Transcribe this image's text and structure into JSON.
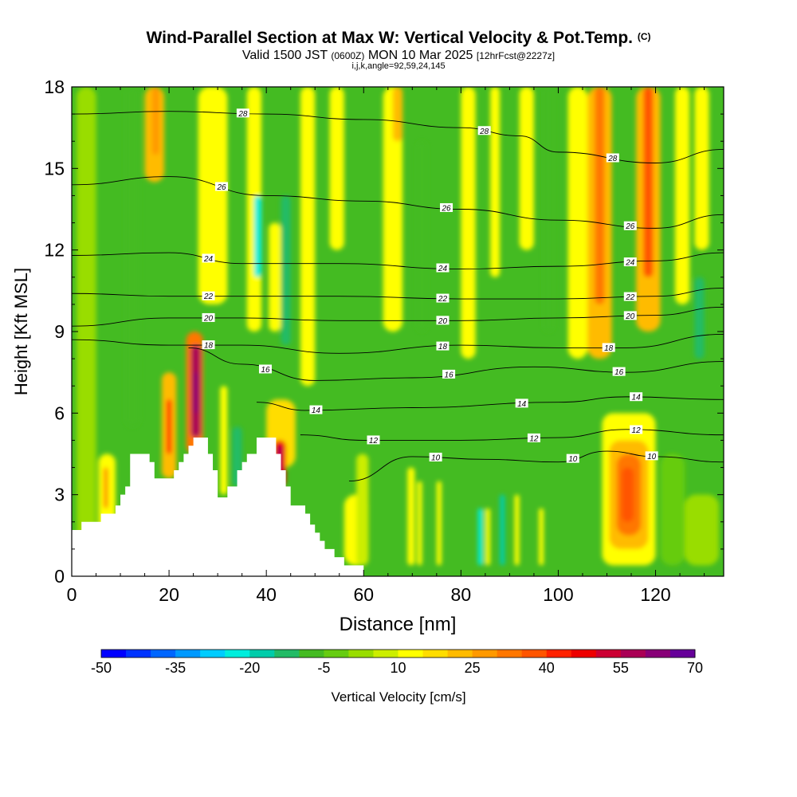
{
  "title": {
    "main": "Wind-Parallel Section at Max W: Vertical Velocity & Pot.Temp.",
    "copyright": "(C)",
    "valid_prefix": "Valid 1500 JST",
    "valid_utc": "(0600Z)",
    "valid_date": "MON 10 Mar 2025",
    "forecast": "[12hrFcst@2227z]",
    "indices": "i,j,k,angle=92,59,24,145"
  },
  "colors": {
    "background": "#ffffff",
    "terrain": "#ffffff",
    "contour": "#000000",
    "base_fill": "#44bb22"
  },
  "chart_data": {
    "type": "heatmap",
    "xlabel": "Distance [nm]",
    "ylabel": "Height [Kft MSL]",
    "xlim": [
      0,
      134
    ],
    "ylim": [
      0,
      18
    ],
    "x_ticks": [
      0,
      20,
      40,
      60,
      80,
      100,
      120
    ],
    "y_ticks": [
      0,
      3,
      6,
      9,
      12,
      15,
      18
    ],
    "terrain_profile": [
      [
        0,
        1.7
      ],
      [
        2,
        1.7
      ],
      [
        2,
        2
      ],
      [
        6,
        2
      ],
      [
        6,
        2.3
      ],
      [
        9,
        2.3
      ],
      [
        9,
        2.6
      ],
      [
        10,
        2.6
      ],
      [
        10,
        3
      ],
      [
        11,
        3
      ],
      [
        11,
        3.3
      ],
      [
        12,
        3.3
      ],
      [
        12,
        4.5
      ],
      [
        16,
        4.5
      ],
      [
        16,
        4.2
      ],
      [
        17,
        4.2
      ],
      [
        17,
        3.6
      ],
      [
        21,
        3.6
      ],
      [
        21,
        3.9
      ],
      [
        22,
        3.9
      ],
      [
        22,
        4.2
      ],
      [
        23,
        4.2
      ],
      [
        23,
        4.5
      ],
      [
        24,
        4.5
      ],
      [
        24,
        4.8
      ],
      [
        25,
        4.8
      ],
      [
        25,
        5.1
      ],
      [
        28,
        5.1
      ],
      [
        28,
        4.5
      ],
      [
        29,
        4.5
      ],
      [
        29,
        3.9
      ],
      [
        30,
        3.9
      ],
      [
        30,
        2.9
      ],
      [
        32,
        2.9
      ],
      [
        32,
        3.3
      ],
      [
        34,
        3.3
      ],
      [
        34,
        3.9
      ],
      [
        35,
        3.9
      ],
      [
        35,
        4.2
      ],
      [
        36,
        4.2
      ],
      [
        36,
        4.5
      ],
      [
        38,
        4.5
      ],
      [
        38,
        5.1
      ],
      [
        42,
        5.1
      ],
      [
        42,
        4.5
      ],
      [
        43,
        4.5
      ],
      [
        43,
        3.9
      ],
      [
        44,
        3.9
      ],
      [
        44,
        3.3
      ],
      [
        45,
        3.3
      ],
      [
        45,
        2.6
      ],
      [
        48,
        2.6
      ],
      [
        48,
        2.3
      ],
      [
        49,
        2.3
      ],
      [
        49,
        1.9
      ],
      [
        50,
        1.9
      ],
      [
        50,
        1.6
      ],
      [
        51,
        1.6
      ],
      [
        51,
        1.3
      ],
      [
        52,
        1.3
      ],
      [
        52,
        1
      ],
      [
        54,
        1
      ],
      [
        54,
        0.7
      ],
      [
        56,
        0.7
      ],
      [
        56,
        0.4
      ],
      [
        60,
        0.4
      ]
    ],
    "theta_contours": [
      {
        "label": "10",
        "points": [
          [
            57,
            3.5
          ],
          [
            70,
            4.4
          ],
          [
            85,
            4.3
          ],
          [
            100,
            4.2
          ],
          [
            110,
            4.6
          ],
          [
            120,
            4.4
          ],
          [
            134,
            4.2
          ]
        ]
      },
      {
        "label": "12",
        "points": [
          [
            47,
            5.2
          ],
          [
            60,
            5.0
          ],
          [
            80,
            5.0
          ],
          [
            100,
            5.1
          ],
          [
            114,
            5.4
          ],
          [
            134,
            5.2
          ]
        ]
      },
      {
        "label": "14",
        "points": [
          [
            38,
            6.4
          ],
          [
            48,
            6.1
          ],
          [
            70,
            6.2
          ],
          [
            100,
            6.4
          ],
          [
            114,
            6.6
          ],
          [
            134,
            6.5
          ]
        ]
      },
      {
        "label": "16",
        "points": [
          [
            24,
            8.4
          ],
          [
            35,
            7.8
          ],
          [
            50,
            7.2
          ],
          [
            70,
            7.3
          ],
          [
            95,
            7.7
          ],
          [
            114,
            7.5
          ],
          [
            134,
            7.9
          ]
        ]
      },
      {
        "label": "18",
        "points": [
          [
            0,
            8.7
          ],
          [
            20,
            8.5
          ],
          [
            35,
            8.5
          ],
          [
            55,
            8.2
          ],
          [
            80,
            8.5
          ],
          [
            100,
            8.4
          ],
          [
            114,
            8.4
          ],
          [
            134,
            8.9
          ]
        ]
      },
      {
        "label": "20",
        "points": [
          [
            0,
            9.2
          ],
          [
            20,
            9.5
          ],
          [
            35,
            9.5
          ],
          [
            55,
            9.4
          ],
          [
            80,
            9.4
          ],
          [
            100,
            9.5
          ],
          [
            120,
            9.6
          ],
          [
            134,
            9.9
          ]
        ]
      },
      {
        "label": "22",
        "points": [
          [
            0,
            10.4
          ],
          [
            20,
            10.3
          ],
          [
            35,
            10.3
          ],
          [
            55,
            10.3
          ],
          [
            80,
            10.2
          ],
          [
            100,
            10.2
          ],
          [
            120,
            10.3
          ],
          [
            134,
            10.6
          ]
        ]
      },
      {
        "label": "24",
        "points": [
          [
            0,
            11.8
          ],
          [
            20,
            11.9
          ],
          [
            35,
            11.5
          ],
          [
            55,
            11.5
          ],
          [
            80,
            11.3
          ],
          [
            100,
            11.4
          ],
          [
            120,
            11.6
          ],
          [
            134,
            11.9
          ]
        ]
      },
      {
        "label": "26",
        "points": [
          [
            0,
            14.4
          ],
          [
            20,
            14.7
          ],
          [
            40,
            14.0
          ],
          [
            60,
            13.8
          ],
          [
            80,
            13.5
          ],
          [
            100,
            13.1
          ],
          [
            120,
            12.8
          ],
          [
            134,
            13.3
          ]
        ]
      },
      {
        "label": "28",
        "points": [
          [
            0,
            17.0
          ],
          [
            20,
            17.1
          ],
          [
            40,
            17.0
          ],
          [
            60,
            16.8
          ],
          [
            80,
            16.5
          ],
          [
            92,
            16.2
          ],
          [
            100,
            15.6
          ],
          [
            120,
            15.2
          ],
          [
            134,
            15.7
          ]
        ]
      }
    ],
    "velocity_cells": [
      {
        "x": [
          1,
          5
        ],
        "y": [
          0,
          18
        ],
        "value": 2
      },
      {
        "x": [
          15,
          19
        ],
        "y": [
          14.5,
          18
        ],
        "value": 20
      },
      {
        "x": [
          16.5,
          18
        ],
        "y": [
          15.5,
          18
        ],
        "value": 26
      },
      {
        "x": [
          26,
          32
        ],
        "y": [
          10,
          18
        ],
        "value": 12
      },
      {
        "x": [
          36,
          39
        ],
        "y": [
          9,
          18
        ],
        "value": 10
      },
      {
        "x": [
          40.5,
          43
        ],
        "y": [
          9,
          13
        ],
        "value": 14
      },
      {
        "x": [
          37.5,
          39
        ],
        "y": [
          11,
          14
        ],
        "value": -25
      },
      {
        "x": [
          47,
          50
        ],
        "y": [
          7,
          18
        ],
        "value": 10
      },
      {
        "x": [
          53,
          56
        ],
        "y": [
          12,
          18
        ],
        "value": 10
      },
      {
        "x": [
          64,
          68
        ],
        "y": [
          9,
          18
        ],
        "value": 12
      },
      {
        "x": [
          66,
          68
        ],
        "y": [
          16,
          18
        ],
        "value": 22
      },
      {
        "x": [
          80,
          83
        ],
        "y": [
          8,
          18
        ],
        "value": 10
      },
      {
        "x": [
          86,
          88
        ],
        "y": [
          11,
          18
        ],
        "value": 12
      },
      {
        "x": [
          92,
          95
        ],
        "y": [
          12,
          18
        ],
        "value": 10
      },
      {
        "x": [
          102,
          106
        ],
        "y": [
          8,
          18
        ],
        "value": 14
      },
      {
        "x": [
          106,
          111
        ],
        "y": [
          8,
          18
        ],
        "value": 22
      },
      {
        "x": [
          107.5,
          109.5
        ],
        "y": [
          10,
          18
        ],
        "value": 32
      },
      {
        "x": [
          116,
          121
        ],
        "y": [
          9,
          18
        ],
        "value": 22
      },
      {
        "x": [
          117.5,
          119.5
        ],
        "y": [
          11,
          18
        ],
        "value": 36
      },
      {
        "x": [
          124,
          127
        ],
        "y": [
          10,
          18
        ],
        "value": 10
      },
      {
        "x": [
          128,
          131
        ],
        "y": [
          12,
          18
        ],
        "value": 10
      },
      {
        "x": [
          11,
          14
        ],
        "y": [
          5.5,
          18
        ],
        "value": -10
      },
      {
        "x": [
          43,
          45
        ],
        "y": [
          8.5,
          14
        ],
        "value": -15
      },
      {
        "x": [
          71,
          73
        ],
        "y": [
          9,
          16
        ],
        "value": -10
      },
      {
        "x": [
          97,
          99
        ],
        "y": [
          9,
          18
        ],
        "value": -10
      },
      {
        "x": [
          128,
          130
        ],
        "y": [
          8,
          11
        ],
        "value": -12
      },
      {
        "x": [
          5.5,
          9
        ],
        "y": [
          1.7,
          4.5
        ],
        "value": 12
      },
      {
        "x": [
          6.5,
          7.5
        ],
        "y": [
          2.5,
          4
        ],
        "value": 28
      },
      {
        "x": [
          18.5,
          21.5
        ],
        "y": [
          3.6,
          7.5
        ],
        "value": 20
      },
      {
        "x": [
          19.5,
          20.5
        ],
        "y": [
          4.5,
          6.5
        ],
        "value": 40
      },
      {
        "x": [
          23.5,
          27
        ],
        "y": [
          4.5,
          9
        ],
        "value": 30
      },
      {
        "x": [
          24.5,
          26.5
        ],
        "y": [
          5.1,
          8.5
        ],
        "value": 55
      },
      {
        "x": [
          25.2,
          25.9
        ],
        "y": [
          6,
          7.5
        ],
        "value": 62
      },
      {
        "x": [
          30.5,
          32
        ],
        "y": [
          3,
          7
        ],
        "value": 14
      },
      {
        "x": [
          33,
          35
        ],
        "y": [
          3.3,
          5.5
        ],
        "value": -15
      },
      {
        "x": [
          40,
          46
        ],
        "y": [
          4,
          6.5
        ],
        "value": 18
      },
      {
        "x": [
          41.5,
          44
        ],
        "y": [
          3.3,
          5
        ],
        "value": 45
      },
      {
        "x": [
          42.2,
          43.2
        ],
        "y": [
          3.5,
          4.8
        ],
        "value": 58
      },
      {
        "x": [
          56,
          61
        ],
        "y": [
          0.4,
          3
        ],
        "value": 10
      },
      {
        "x": [
          58.5,
          61
        ],
        "y": [
          0.4,
          4.5
        ],
        "value": 8
      },
      {
        "x": [
          69,
          70.5
        ],
        "y": [
          0.4,
          4
        ],
        "value": 14
      },
      {
        "x": [
          71,
          72
        ],
        "y": [
          0.4,
          3.5
        ],
        "value": 10
      },
      {
        "x": [
          75,
          76
        ],
        "y": [
          0.4,
          3.5
        ],
        "value": 12
      },
      {
        "x": [
          83.5,
          84.5
        ],
        "y": [
          0.4,
          2.5
        ],
        "value": -25
      },
      {
        "x": [
          85,
          86
        ],
        "y": [
          0.4,
          2.5
        ],
        "value": 12
      },
      {
        "x": [
          88,
          89
        ],
        "y": [
          0.4,
          3
        ],
        "value": -20
      },
      {
        "x": [
          91,
          92
        ],
        "y": [
          0.4,
          3
        ],
        "value": 14
      },
      {
        "x": [
          96,
          97
        ],
        "y": [
          0.4,
          2.5
        ],
        "value": 10
      },
      {
        "x": [
          109,
          120
        ],
        "y": [
          0.4,
          6
        ],
        "value": 14
      },
      {
        "x": [
          110.5,
          118.5
        ],
        "y": [
          1,
          5
        ],
        "value": 22
      },
      {
        "x": [
          112,
          117
        ],
        "y": [
          1.5,
          4.5
        ],
        "value": 30
      },
      {
        "x": [
          113,
          115.5
        ],
        "y": [
          2,
          4
        ],
        "value": 36
      },
      {
        "x": [
          121,
          126
        ],
        "y": [
          0.4,
          4.5
        ],
        "value": -4
      },
      {
        "x": [
          126,
          133
        ],
        "y": [
          0.4,
          3
        ],
        "value": 2
      }
    ],
    "colorbar": {
      "label": "Vertical Velocity [cm/s]",
      "min": -50,
      "max": 70,
      "step": 5,
      "tick_labels": [
        "-50",
        "-35",
        "-20",
        "-5",
        "10",
        "25",
        "40",
        "55",
        "70"
      ],
      "colors": [
        "#0000ff",
        "#0033ff",
        "#0066ff",
        "#0099ff",
        "#00ccff",
        "#00eedd",
        "#00ccaa",
        "#22bb66",
        "#44bb22",
        "#66cc11",
        "#99dd00",
        "#ccee00",
        "#ffff00",
        "#ffdd00",
        "#ffbb00",
        "#ff9900",
        "#ff7700",
        "#ff5500",
        "#ff2200",
        "#ee0000",
        "#cc0033",
        "#aa0055",
        "#880077",
        "#660099"
      ]
    }
  }
}
